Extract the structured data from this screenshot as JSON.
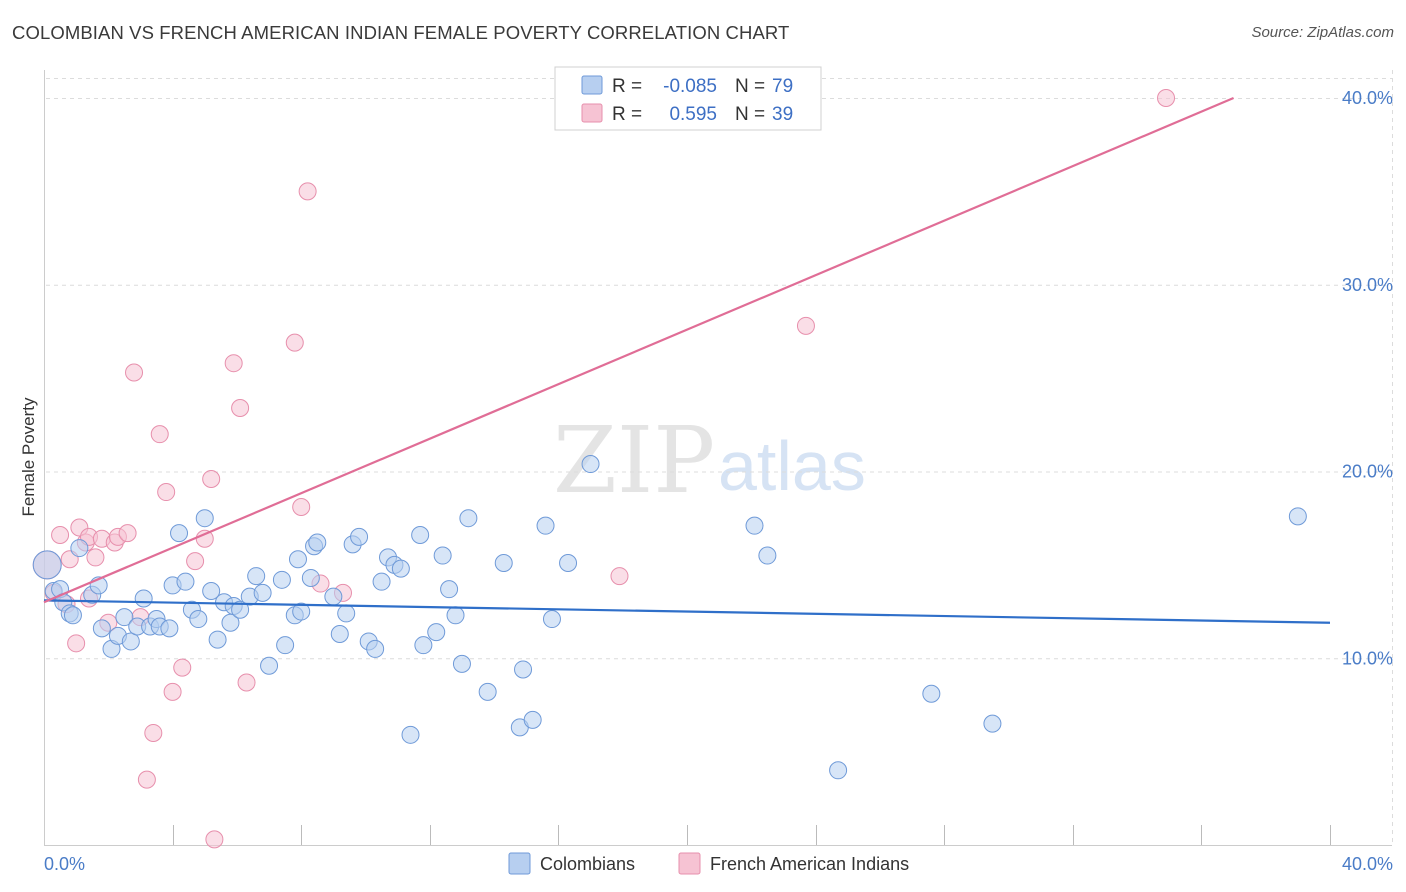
{
  "header": {
    "title": "COLOMBIAN VS FRENCH AMERICAN INDIAN FEMALE POVERTY CORRELATION CHART",
    "source": "Source: ZipAtlas.com"
  },
  "watermark": {
    "zip": "ZIP",
    "atlas": "atlas"
  },
  "colors": {
    "blue_fill": "#b7cff0",
    "blue_stroke": "#6f9ad8",
    "blue_line": "#2f6fc9",
    "pink_fill": "#f6c3d3",
    "pink_stroke": "#e78fac",
    "pink_line": "#e06d96",
    "grid": "#dcdcdc",
    "tick_text": "#4a7cc7"
  },
  "chart_data": {
    "type": "scatter",
    "title": "COLOMBIAN VS FRENCH AMERICAN INDIAN FEMALE POVERTY CORRELATION CHART",
    "xlabel": "",
    "ylabel": "Female Poverty",
    "xlim": [
      0,
      40
    ],
    "ylim": [
      0,
      41.5
    ],
    "x_tick_labels": [
      "0.0%",
      "40.0%"
    ],
    "y_ticks": [
      10,
      20,
      30,
      40
    ],
    "y_tick_labels": [
      "10.0%",
      "20.0%",
      "30.0%",
      "40.0%"
    ],
    "grid": "horizontal dashed",
    "legend": {
      "placement": "top-center",
      "entries": [
        {
          "series": "Colombians",
          "r_label": "R =",
          "r_value": "-0.085",
          "n_label": "N =",
          "n_value": "79"
        },
        {
          "series": "French American Indians",
          "r_label": "R =",
          "r_value": "0.595",
          "n_label": "N =",
          "n_value": "39"
        }
      ]
    },
    "series": [
      {
        "name": "Colombians",
        "color": "#b7cff0",
        "trend": {
          "x": [
            0,
            40
          ],
          "y": [
            13.1,
            11.9
          ]
        },
        "points": [
          [
            0.1,
            15.0
          ],
          [
            0.3,
            13.6
          ],
          [
            0.5,
            13.7
          ],
          [
            0.6,
            13.0
          ],
          [
            0.8,
            12.4
          ],
          [
            0.9,
            12.3
          ],
          [
            1.1,
            15.9
          ],
          [
            1.5,
            13.4
          ],
          [
            1.7,
            13.9
          ],
          [
            1.8,
            11.6
          ],
          [
            2.1,
            10.5
          ],
          [
            2.3,
            11.2
          ],
          [
            2.5,
            12.2
          ],
          [
            2.7,
            10.9
          ],
          [
            2.9,
            11.7
          ],
          [
            3.1,
            13.2
          ],
          [
            3.3,
            11.7
          ],
          [
            3.5,
            12.1
          ],
          [
            3.6,
            11.7
          ],
          [
            3.9,
            11.6
          ],
          [
            4.0,
            13.9
          ],
          [
            4.2,
            16.7
          ],
          [
            4.4,
            14.1
          ],
          [
            4.6,
            12.6
          ],
          [
            4.8,
            12.1
          ],
          [
            5.0,
            17.5
          ],
          [
            5.2,
            13.6
          ],
          [
            5.4,
            11.0
          ],
          [
            5.6,
            13.0
          ],
          [
            5.8,
            11.9
          ],
          [
            5.9,
            12.8
          ],
          [
            6.1,
            12.6
          ],
          [
            6.4,
            13.3
          ],
          [
            6.6,
            14.4
          ],
          [
            6.8,
            13.5
          ],
          [
            7.0,
            9.6
          ],
          [
            7.4,
            14.2
          ],
          [
            7.5,
            10.7
          ],
          [
            7.8,
            12.3
          ],
          [
            7.9,
            15.3
          ],
          [
            8.0,
            12.5
          ],
          [
            8.3,
            14.3
          ],
          [
            8.4,
            16.0
          ],
          [
            8.5,
            16.2
          ],
          [
            9.0,
            13.3
          ],
          [
            9.2,
            11.3
          ],
          [
            9.4,
            12.4
          ],
          [
            9.6,
            16.1
          ],
          [
            9.8,
            16.5
          ],
          [
            10.1,
            10.9
          ],
          [
            10.3,
            10.5
          ],
          [
            10.5,
            14.1
          ],
          [
            10.7,
            15.4
          ],
          [
            10.9,
            15.0
          ],
          [
            11.1,
            14.8
          ],
          [
            11.4,
            5.9
          ],
          [
            11.7,
            16.6
          ],
          [
            11.8,
            10.7
          ],
          [
            12.2,
            11.4
          ],
          [
            12.4,
            15.5
          ],
          [
            12.6,
            13.7
          ],
          [
            12.8,
            12.3
          ],
          [
            13.0,
            9.7
          ],
          [
            13.2,
            17.5
          ],
          [
            13.8,
            8.2
          ],
          [
            14.3,
            15.1
          ],
          [
            14.8,
            6.3
          ],
          [
            14.9,
            9.4
          ],
          [
            15.2,
            6.7
          ],
          [
            15.6,
            17.1
          ],
          [
            15.8,
            12.1
          ],
          [
            16.3,
            15.1
          ],
          [
            17.0,
            20.4
          ],
          [
            22.1,
            17.1
          ],
          [
            22.5,
            15.5
          ],
          [
            24.7,
            4.0
          ],
          [
            27.6,
            8.1
          ],
          [
            29.5,
            6.5
          ],
          [
            39.0,
            17.6
          ]
        ]
      },
      {
        "name": "French American Indians",
        "color": "#f6c3d3",
        "trend": {
          "x": [
            0,
            37
          ],
          "y": [
            13.0,
            40.0
          ]
        },
        "points": [
          [
            0.1,
            15.0
          ],
          [
            0.3,
            13.5
          ],
          [
            0.5,
            16.6
          ],
          [
            0.7,
            12.9
          ],
          [
            0.8,
            15.3
          ],
          [
            1.0,
            10.8
          ],
          [
            1.1,
            17.0
          ],
          [
            1.3,
            16.2
          ],
          [
            1.4,
            16.5
          ],
          [
            1.6,
            15.4
          ],
          [
            1.8,
            16.4
          ],
          [
            2.0,
            11.9
          ],
          [
            2.2,
            16.2
          ],
          [
            2.3,
            16.5
          ],
          [
            2.6,
            16.7
          ],
          [
            2.8,
            25.3
          ],
          [
            3.0,
            12.2
          ],
          [
            3.2,
            3.5
          ],
          [
            3.4,
            6.0
          ],
          [
            3.6,
            22.0
          ],
          [
            3.8,
            18.9
          ],
          [
            4.0,
            8.2
          ],
          [
            4.3,
            9.5
          ],
          [
            4.7,
            15.2
          ],
          [
            5.0,
            16.4
          ],
          [
            5.2,
            19.6
          ],
          [
            5.3,
            0.3
          ],
          [
            5.9,
            25.8
          ],
          [
            6.1,
            23.4
          ],
          [
            6.3,
            8.7
          ],
          [
            7.8,
            26.9
          ],
          [
            8.0,
            18.1
          ],
          [
            8.2,
            35.0
          ],
          [
            8.6,
            14.0
          ],
          [
            9.3,
            13.5
          ],
          [
            17.9,
            14.4
          ],
          [
            23.7,
            27.8
          ],
          [
            34.9,
            40.0
          ],
          [
            1.4,
            13.2
          ]
        ]
      }
    ]
  }
}
